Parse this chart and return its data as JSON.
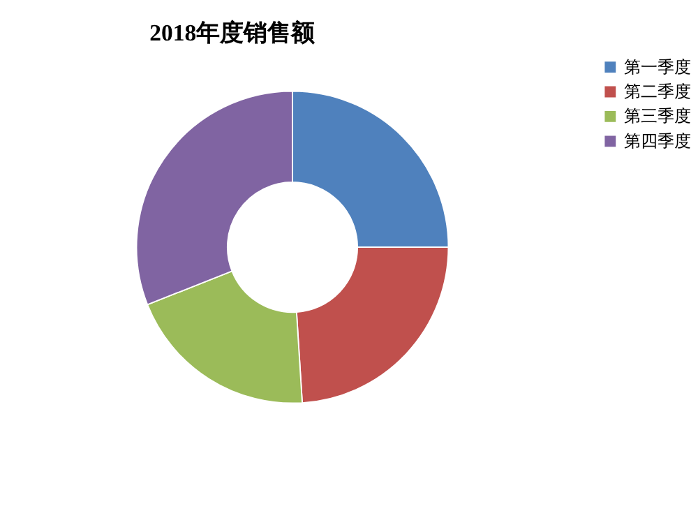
{
  "chart_data": {
    "type": "donut",
    "title": "2018年度销售额",
    "categories": [
      "第一季度",
      "第二季度",
      "第三季度",
      "第四季度"
    ],
    "values": [
      25,
      24,
      20,
      31
    ],
    "colors": [
      "#4f81bd",
      "#c0504d",
      "#9bbb59",
      "#8064a2"
    ],
    "legend": "right"
  }
}
